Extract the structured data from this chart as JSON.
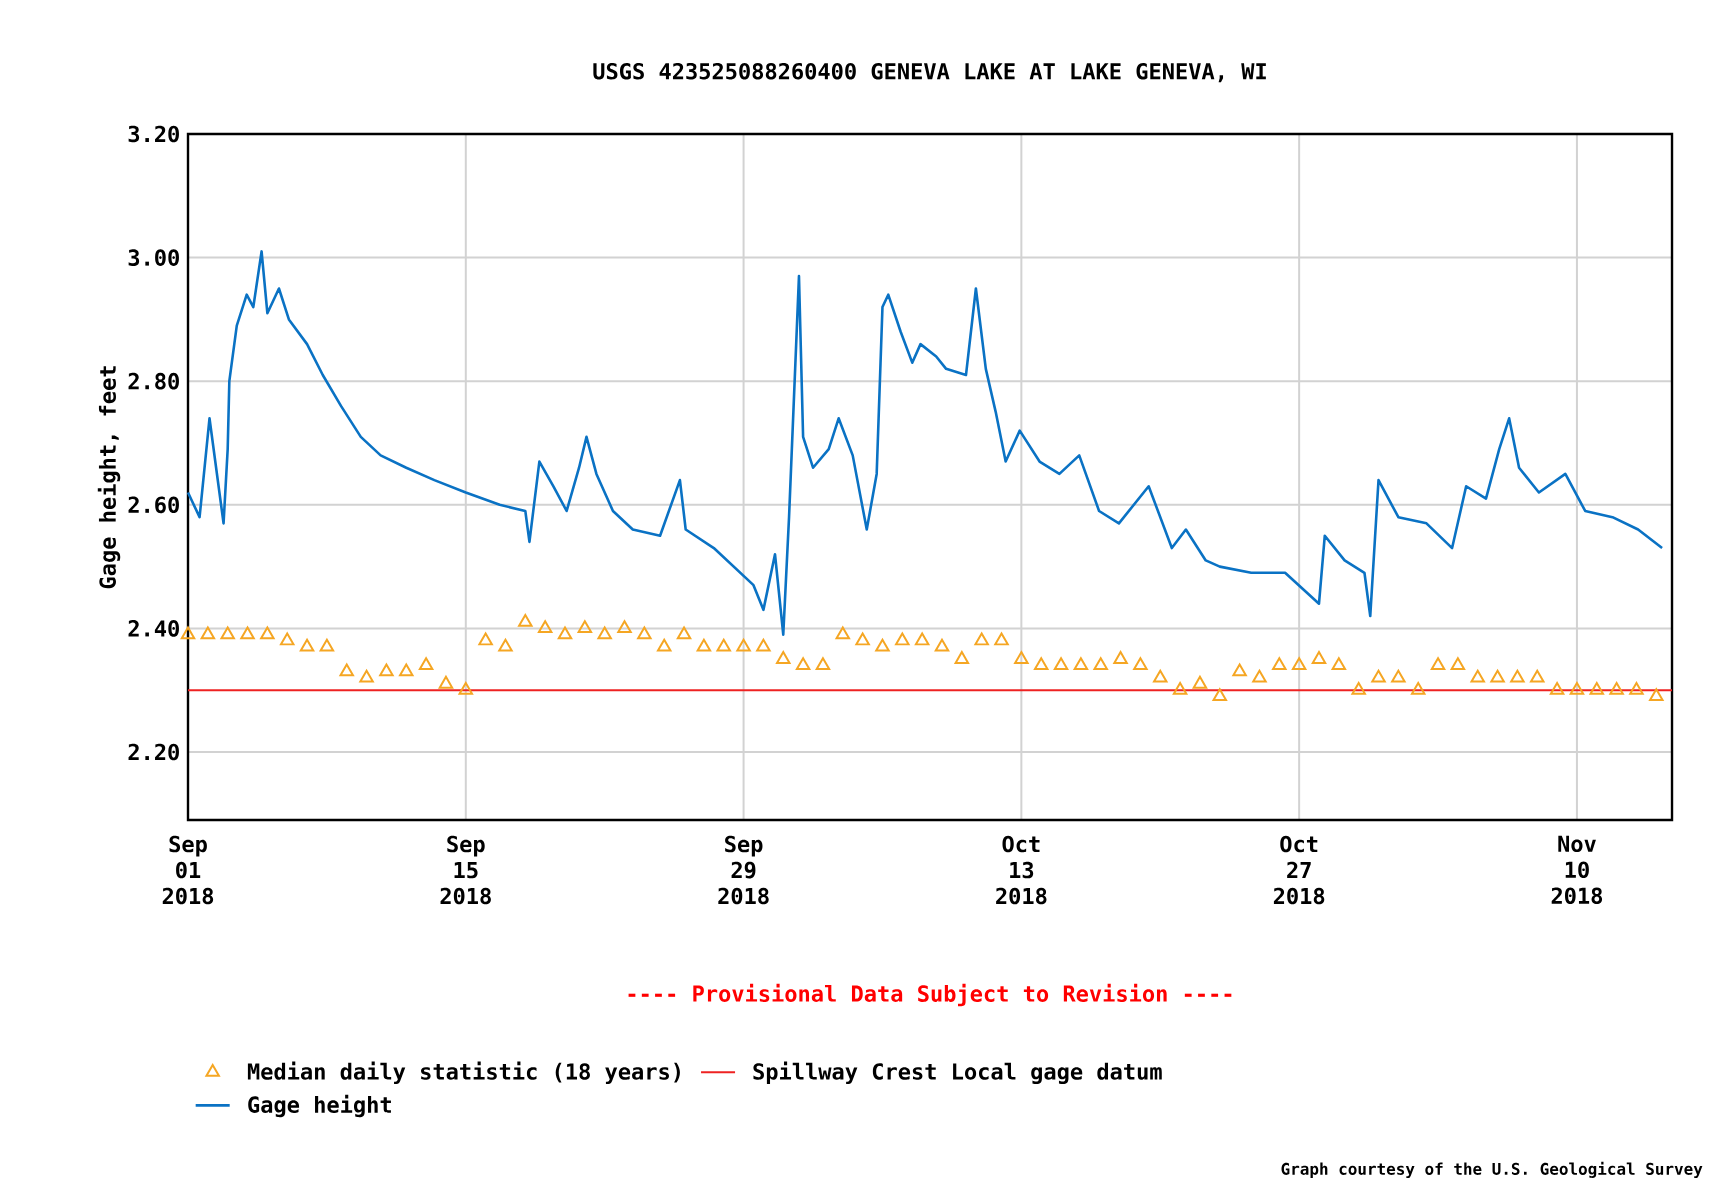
{
  "chart_data": {
    "type": "line",
    "title": "USGS 423525088260400 GENEVA LAKE AT LAKE GENEVA, WI",
    "ylabel": "Gage height, feet",
    "xlim": [
      "2018-09-01",
      "2018-11-14T19:00"
    ],
    "xticks": [
      {
        "value": "2018-09-01",
        "label": "Sep 01 2018"
      },
      {
        "value": "2018-09-15",
        "label": "Sep 15 2018"
      },
      {
        "value": "2018-09-29",
        "label": "Sep 29 2018"
      },
      {
        "value": "2018-10-13",
        "label": "Oct 13 2018"
      },
      {
        "value": "2018-10-27",
        "label": "Oct 27 2018"
      },
      {
        "value": "2018-11-10",
        "label": "Nov 10 2018"
      }
    ],
    "ylim": [
      2.09,
      3.2
    ],
    "yticks": [
      {
        "value": 2.2,
        "label": "2.20"
      },
      {
        "value": 2.4,
        "label": "2.40"
      },
      {
        "value": 2.6,
        "label": "2.60"
      },
      {
        "value": 2.8,
        "label": "2.80"
      },
      {
        "value": 3.0,
        "label": "3.00"
      },
      {
        "value": 3.2,
        "label": "3.20"
      }
    ],
    "grid": true,
    "legend": "bottom",
    "series": [
      {
        "name": "Median daily statistic (18 years)",
        "type": "scatter",
        "marker": "triangle",
        "color": "#f5a623",
        "x": [
          "2018-09-01",
          "2018-09-02",
          "2018-09-03",
          "2018-09-04",
          "2018-09-05",
          "2018-09-06",
          "2018-09-07",
          "2018-09-08",
          "2018-09-09",
          "2018-09-10",
          "2018-09-11",
          "2018-09-12",
          "2018-09-13",
          "2018-09-14",
          "2018-09-15",
          "2018-09-16",
          "2018-09-17",
          "2018-09-18",
          "2018-09-19",
          "2018-09-20",
          "2018-09-21",
          "2018-09-22",
          "2018-09-23",
          "2018-09-24",
          "2018-09-25",
          "2018-09-26",
          "2018-09-27",
          "2018-09-28",
          "2018-09-29",
          "2018-09-30",
          "2018-10-01",
          "2018-10-02",
          "2018-10-03",
          "2018-10-04",
          "2018-10-05",
          "2018-10-06",
          "2018-10-07",
          "2018-10-08",
          "2018-10-09",
          "2018-10-10",
          "2018-10-11",
          "2018-10-12",
          "2018-10-13",
          "2018-10-14",
          "2018-10-15",
          "2018-10-16",
          "2018-10-17",
          "2018-10-18",
          "2018-10-19",
          "2018-10-20",
          "2018-10-21",
          "2018-10-22",
          "2018-10-23",
          "2018-10-24",
          "2018-10-25",
          "2018-10-26",
          "2018-10-27",
          "2018-10-28",
          "2018-10-29",
          "2018-10-30",
          "2018-10-31",
          "2018-11-01",
          "2018-11-02",
          "2018-11-03",
          "2018-11-04",
          "2018-11-05",
          "2018-11-06",
          "2018-11-07",
          "2018-11-08",
          "2018-11-09",
          "2018-11-10",
          "2018-11-11",
          "2018-11-12",
          "2018-11-13",
          "2018-11-14"
        ],
        "values": [
          2.39,
          2.39,
          2.39,
          2.39,
          2.39,
          2.38,
          2.37,
          2.37,
          2.33,
          2.32,
          2.33,
          2.33,
          2.34,
          2.31,
          2.3,
          2.38,
          2.37,
          2.41,
          2.4,
          2.39,
          2.4,
          2.39,
          2.4,
          2.39,
          2.37,
          2.39,
          2.37,
          2.37,
          2.37,
          2.37,
          2.35,
          2.34,
          2.34,
          2.39,
          2.38,
          2.37,
          2.38,
          2.38,
          2.37,
          2.35,
          2.38,
          2.38,
          2.35,
          2.34,
          2.34,
          2.34,
          2.34,
          2.35,
          2.34,
          2.32,
          2.3,
          2.31,
          2.29,
          2.33,
          2.32,
          2.34,
          2.34,
          2.35,
          2.34,
          2.3,
          2.32,
          2.32,
          2.3,
          2.34,
          2.34,
          2.32,
          2.32,
          2.32,
          2.32,
          2.3,
          2.3,
          2.3,
          2.3,
          2.3,
          2.29
        ]
      },
      {
        "name": "Gage height",
        "color": "#0a72c4",
        "x": [
          "2018-09-01T00:00",
          "2018-09-01T14:00",
          "2018-09-02T02:00",
          "2018-09-02T10:00",
          "2018-09-02T19:00",
          "2018-09-03T00:00",
          "2018-09-03T02:00",
          "2018-09-03T11:00",
          "2018-09-03T23:00",
          "2018-09-04T07:00",
          "2018-09-04T17:00",
          "2018-09-05T00:00",
          "2018-09-05T14:00",
          "2018-09-06T02:00",
          "2018-09-07T00:00",
          "2018-09-07T19:00",
          "2018-09-08T17:00",
          "2018-09-09T17:00",
          "2018-09-10T17:00",
          "2018-09-12T00:00",
          "2018-09-13T10:00",
          "2018-09-15T00:00",
          "2018-09-16T17:00",
          "2018-09-18T00:00",
          "2018-09-18T05:00",
          "2018-09-18T17:00",
          "2018-09-19T10:00",
          "2018-09-20T02:00",
          "2018-09-20T17:00",
          "2018-09-21T02:00",
          "2018-09-21T14:00",
          "2018-09-22T10:00",
          "2018-09-23T10:00",
          "2018-09-24T19:00",
          "2018-09-25T19:00",
          "2018-09-26T02:00",
          "2018-09-27T12:00",
          "2018-09-28T12:00",
          "2018-09-29T12:00",
          "2018-09-30T00:00",
          "2018-09-30T14:00",
          "2018-10-01T00:00",
          "2018-10-01T07:00",
          "2018-10-01T19:00",
          "2018-10-02T00:00",
          "2018-10-02T12:00",
          "2018-10-03T07:00",
          "2018-10-03T19:00",
          "2018-10-04T12:00",
          "2018-10-05T05:00",
          "2018-10-05T17:00",
          "2018-10-06T00:00",
          "2018-10-06T07:00",
          "2018-10-06T22:00",
          "2018-10-07T12:00",
          "2018-10-07T22:00",
          "2018-10-08T17:00",
          "2018-10-09T05:00",
          "2018-10-10T05:00",
          "2018-10-10T17:00",
          "2018-10-11T05:00",
          "2018-10-11T17:00",
          "2018-10-12T05:00",
          "2018-10-12T22:00",
          "2018-10-13T22:00",
          "2018-10-14T22:00",
          "2018-10-15T22:00",
          "2018-10-16T22:00",
          "2018-10-17T22:00",
          "2018-10-19T10:00",
          "2018-10-20T14:00",
          "2018-10-21T07:00",
          "2018-10-22T07:00",
          "2018-10-23T00:00",
          "2018-10-24T14:00",
          "2018-10-26T07:00",
          "2018-10-28T00:00",
          "2018-10-28T07:00",
          "2018-10-29T07:00",
          "2018-10-30T07:00",
          "2018-10-30T14:00",
          "2018-10-31T00:00",
          "2018-11-01T00:00",
          "2018-11-02T10:00",
          "2018-11-03T17:00",
          "2018-11-04T10:00",
          "2018-11-05T10:00",
          "2018-11-06T02:00",
          "2018-11-06T14:00",
          "2018-11-07T02:00",
          "2018-11-08T02:00",
          "2018-11-09T10:00",
          "2018-11-10T10:00",
          "2018-11-11T19:00",
          "2018-11-13T02:00",
          "2018-11-14T07:00"
        ],
        "values": [
          2.62,
          2.58,
          2.74,
          2.66,
          2.57,
          2.69,
          2.8,
          2.89,
          2.94,
          2.92,
          3.01,
          2.91,
          2.95,
          2.9,
          2.86,
          2.81,
          2.76,
          2.71,
          2.68,
          2.66,
          2.64,
          2.62,
          2.6,
          2.59,
          2.54,
          2.67,
          2.63,
          2.59,
          2.66,
          2.71,
          2.65,
          2.59,
          2.56,
          2.55,
          2.64,
          2.56,
          2.53,
          2.5,
          2.47,
          2.43,
          2.52,
          2.39,
          2.58,
          2.97,
          2.71,
          2.66,
          2.69,
          2.74,
          2.68,
          2.56,
          2.65,
          2.92,
          2.94,
          2.88,
          2.83,
          2.86,
          2.84,
          2.82,
          2.81,
          2.95,
          2.82,
          2.75,
          2.67,
          2.72,
          2.67,
          2.65,
          2.68,
          2.59,
          2.57,
          2.63,
          2.53,
          2.56,
          2.51,
          2.5,
          2.49,
          2.49,
          2.44,
          2.55,
          2.51,
          2.49,
          2.42,
          2.64,
          2.58,
          2.57,
          2.53,
          2.63,
          2.61,
          2.69,
          2.74,
          2.66,
          2.62,
          2.65,
          2.59,
          2.58,
          2.56,
          2.53
        ]
      }
    ],
    "ref_lines": [
      {
        "axis": "y",
        "value": 2.3,
        "label": "Spillway Crest Local gage datum",
        "color": "#ee2222"
      }
    ],
    "annotations": [
      "---- Provisional Data Subject to Revision ----",
      "Graph courtesy of the U.S. Geological Survey"
    ]
  }
}
